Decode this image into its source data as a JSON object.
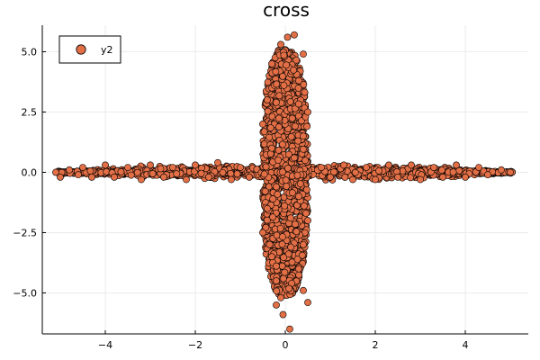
{
  "chart_data": {
    "type": "scatter",
    "title": "cross",
    "xlabel": "",
    "ylabel": "",
    "xlim": [
      -5.4,
      5.4
    ],
    "ylim": [
      -6.7,
      6.1
    ],
    "x_ticks": [
      -4,
      -2,
      0,
      2,
      4
    ],
    "x_tick_labels": [
      "−4",
      "−2",
      "0",
      "2",
      "4"
    ],
    "y_ticks": [
      -5,
      -2.5,
      0,
      2.5,
      5
    ],
    "y_tick_labels": [
      "−5.0",
      "−2.5",
      "0.0",
      "2.5",
      "5.0"
    ],
    "grid": true,
    "legend": "top-left",
    "series": [
      {
        "name": "y2",
        "color": "#e26f46",
        "points": [
          [
            -5.1,
            0.0
          ],
          [
            -5.0,
            -0.2
          ],
          [
            -4.8,
            0.1
          ],
          [
            -4.6,
            -0.1
          ],
          [
            -4.5,
            0.2
          ],
          [
            -4.3,
            -0.2
          ],
          [
            -4.0,
            0.3
          ],
          [
            -3.8,
            -0.2
          ],
          [
            -3.5,
            0.2
          ],
          [
            -3.2,
            -0.3
          ],
          [
            -3.0,
            0.3
          ],
          [
            -2.7,
            -0.2
          ],
          [
            -2.5,
            0.2
          ],
          [
            -2.2,
            -0.3
          ],
          [
            -2.0,
            0.3
          ],
          [
            -1.7,
            -0.2
          ],
          [
            -1.5,
            0.4
          ],
          [
            -1.2,
            -0.3
          ],
          [
            -1.0,
            0.2
          ],
          [
            -0.8,
            -0.2
          ],
          [
            0.8,
            0.2
          ],
          [
            1.0,
            -0.2
          ],
          [
            1.3,
            0.3
          ],
          [
            1.5,
            -0.3
          ],
          [
            1.8,
            0.2
          ],
          [
            2.0,
            -0.3
          ],
          [
            2.3,
            0.3
          ],
          [
            2.5,
            -0.2
          ],
          [
            2.8,
            0.3
          ],
          [
            3.0,
            -0.3
          ],
          [
            3.3,
            0.2
          ],
          [
            3.5,
            -0.2
          ],
          [
            3.8,
            0.3
          ],
          [
            4.0,
            -0.2
          ],
          [
            4.3,
            0.2
          ],
          [
            4.5,
            -0.1
          ],
          [
            4.8,
            0.1
          ],
          [
            5.0,
            0.0
          ],
          [
            0.05,
            5.6
          ],
          [
            0.2,
            5.7
          ],
          [
            -0.1,
            5.3
          ],
          [
            0.4,
            4.9
          ],
          [
            -0.3,
            4.5
          ],
          [
            0.3,
            3.8
          ],
          [
            -0.4,
            3.0
          ],
          [
            0.5,
            2.5
          ],
          [
            -0.5,
            2.0
          ],
          [
            0.4,
            1.5
          ],
          [
            -0.3,
            1.0
          ],
          [
            0.2,
            0.6
          ],
          [
            -0.2,
            -0.6
          ],
          [
            0.3,
            -1.0
          ],
          [
            -0.4,
            -1.5
          ],
          [
            0.5,
            -2.0
          ],
          [
            -0.5,
            -2.5
          ],
          [
            0.4,
            -3.0
          ],
          [
            -0.3,
            -3.5
          ],
          [
            0.3,
            -4.0
          ],
          [
            -0.2,
            -4.5
          ],
          [
            0.4,
            -4.9
          ],
          [
            -0.1,
            -5.2
          ],
          [
            0.5,
            -5.4
          ],
          [
            -0.2,
            -5.5
          ],
          [
            -0.05,
            -5.9
          ],
          [
            0.1,
            -6.5
          ]
        ],
        "band_fill_density": "dense"
      }
    ]
  }
}
